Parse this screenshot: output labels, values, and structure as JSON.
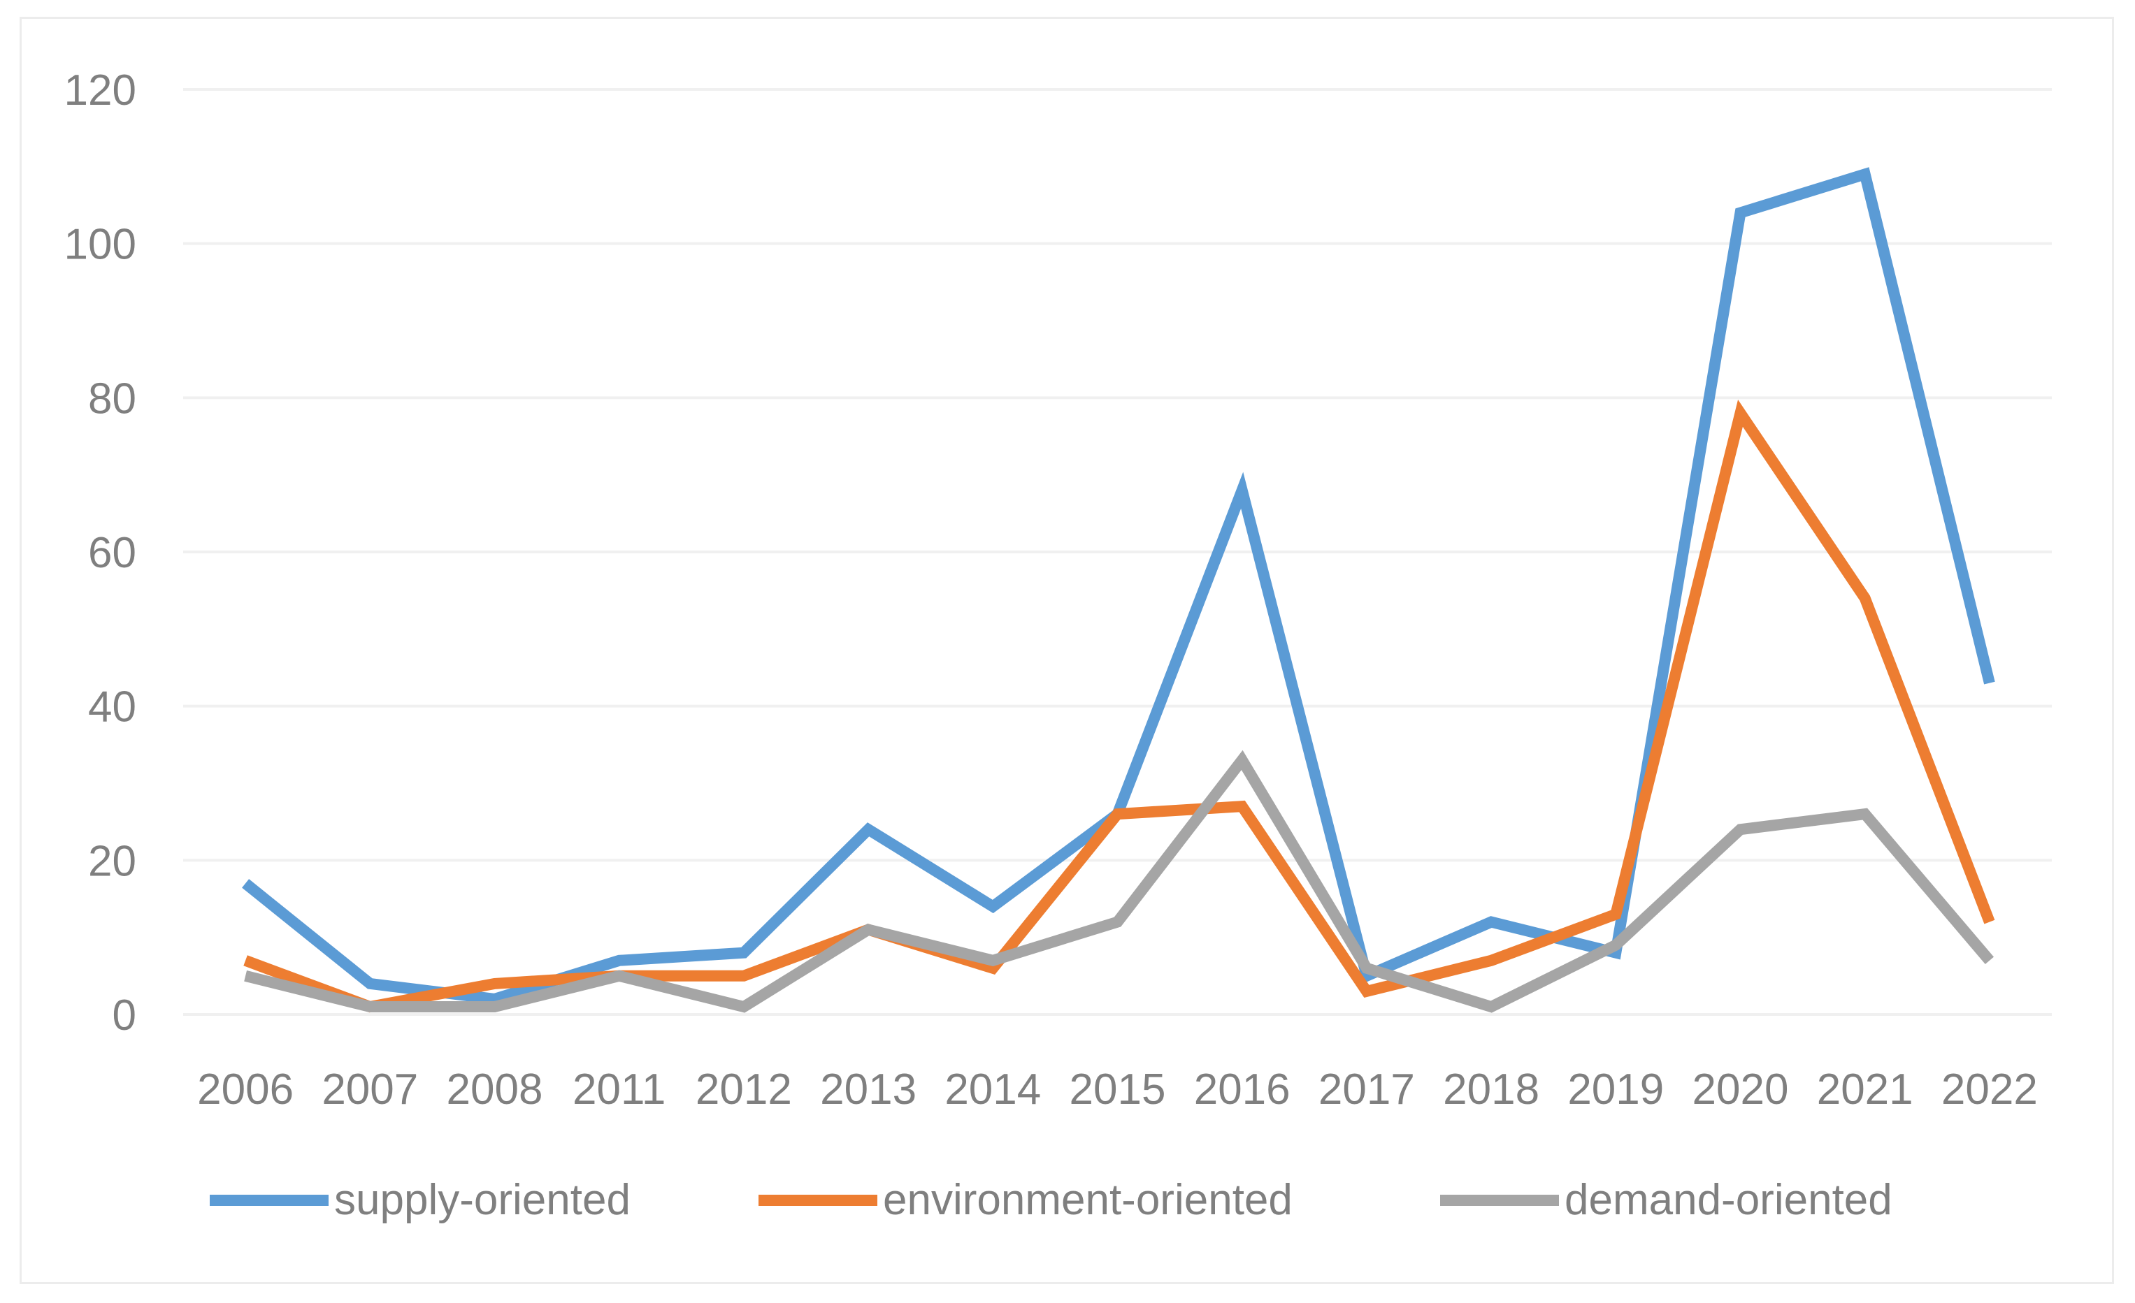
{
  "chart_data": {
    "type": "line",
    "title": "",
    "xlabel": "",
    "ylabel": "",
    "categories": [
      "2006",
      "2007",
      "2008",
      "2011",
      "2012",
      "2013",
      "2014",
      "2015",
      "2016",
      "2017",
      "2018",
      "2019",
      "2020",
      "2021",
      "2022"
    ],
    "ylim": [
      0,
      120
    ],
    "yticks": [
      "0",
      "20",
      "40",
      "60",
      "80",
      "100",
      "120"
    ],
    "grid": true,
    "legend_position": "bottom",
    "series": [
      {
        "name": "supply-oriented",
        "color": "#5b9bd5",
        "values": [
          17,
          4,
          2,
          7,
          8,
          24,
          14,
          26,
          68,
          5,
          12,
          8,
          104,
          109,
          43
        ]
      },
      {
        "name": "environment-oriented",
        "color": "#ed7d31",
        "values": [
          7,
          1,
          4,
          5,
          5,
          11,
          6,
          26,
          27,
          3,
          7,
          13,
          78,
          54,
          12
        ]
      },
      {
        "name": "demand-oriented",
        "color": "#a5a5a5",
        "values": [
          5,
          1,
          1,
          5,
          1,
          11,
          7,
          12,
          33,
          6,
          1,
          9,
          24,
          26,
          7
        ]
      }
    ]
  }
}
